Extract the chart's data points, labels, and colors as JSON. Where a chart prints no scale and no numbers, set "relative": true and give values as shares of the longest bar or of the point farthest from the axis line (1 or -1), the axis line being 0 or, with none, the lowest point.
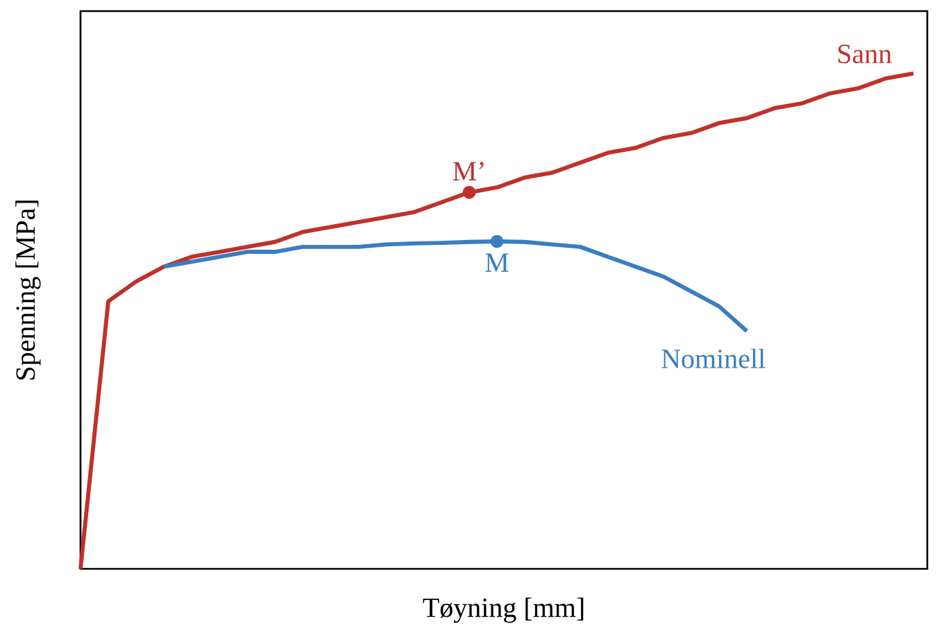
{
  "chart_data": {
    "type": "line",
    "relative": true,
    "xlabel": "Tøyning [mm]",
    "ylabel": "Spenning [MPa]",
    "categories": [
      null,
      null,
      null,
      null,
      null,
      null,
      null,
      null,
      null,
      null,
      null,
      null,
      null,
      null,
      null,
      null,
      null,
      null,
      null,
      null,
      null,
      null,
      null,
      null,
      null,
      null,
      null,
      null,
      null,
      null,
      null
    ],
    "series": [
      {
        "name": "Sann",
        "color": "#c0312b",
        "values": [
          0,
          0.54,
          0.58,
          0.61,
          0.63,
          0.64,
          0.65,
          0.66,
          0.68,
          0.69,
          0.7,
          0.71,
          0.72,
          0.74,
          0.76,
          0.77,
          0.79,
          0.8,
          0.82,
          0.84,
          0.85,
          0.87,
          0.88,
          0.9,
          0.91,
          0.93,
          0.94,
          0.96,
          0.97,
          0.99,
          1.0
        ]
      },
      {
        "name": "Nominell",
        "color": "#3a7dc1",
        "values": [
          null,
          null,
          null,
          0.61,
          0.62,
          0.63,
          0.64,
          0.64,
          0.65,
          0.65,
          0.65,
          0.655,
          0.657,
          0.658,
          0.66,
          0.661,
          0.66,
          0.655,
          0.65,
          0.63,
          0.61,
          0.59,
          0.56,
          0.53,
          0.48,
          null,
          null,
          null,
          null,
          null,
          null
        ]
      }
    ],
    "annotations": [
      {
        "text": "M’",
        "y": 0.76
      },
      {
        "text": "M",
        "y": 0.661
      }
    ]
  }
}
